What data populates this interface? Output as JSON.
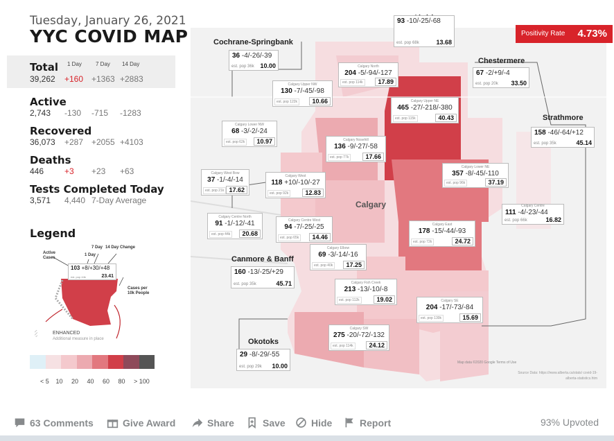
{
  "header": {
    "date": "Tuesday, January 26, 2021",
    "title": "YYC COVID MAP"
  },
  "positivity": {
    "label": "Positivity Rate",
    "value": "4.73%"
  },
  "stats": {
    "col_1day": "1 Day",
    "col_7day": "7 Day",
    "col_14day": "14 Day",
    "total": {
      "label": "Total",
      "value": "39,262",
      "d1": "+160",
      "d7": "+1363",
      "d14": "+2883"
    },
    "active": {
      "label": "Active",
      "value": "2,743",
      "d1": "-130",
      "d7": "-715",
      "d14": "-1283"
    },
    "recovered": {
      "label": "Recovered",
      "value": "36,073",
      "d1": "+287",
      "d7": "+2055",
      "d14": "+4103"
    },
    "deaths": {
      "label": "Deaths",
      "value": "446",
      "d1": "+3",
      "d7": "+23",
      "d14": "+63"
    },
    "tests": {
      "label": "Tests Completed Today",
      "value": "3,571",
      "avg": "4,440",
      "avg_label": "7-Day Average"
    }
  },
  "legend": {
    "title": "Legend",
    "active_cases": "Active Cases",
    "one_day": "1 Day",
    "seven_day": "7 Day",
    "fourteen_day": "14 Day Change",
    "sample_main": "103",
    "sample_changes": "+8/+30/+48",
    "sample_pop": "est. pop 44k",
    "sample_rate": "23.41",
    "cases_per": "Cases per 10k People",
    "enhanced": "ENHANCED",
    "enhanced_sub": "Additional measure in place",
    "scale_colors": [
      "#dff0f7",
      "#f6e1e3",
      "#f4c9cd",
      "#ecaab0",
      "#e2787f",
      "#d13f49",
      "#8e4a5a",
      "#555555"
    ],
    "scale_labels": [
      "< 5",
      "10",
      "20",
      "40",
      "60",
      "80",
      "> 100"
    ]
  },
  "regions": [
    {
      "name": "Calgary North",
      "active": "204",
      "changes": "-5/-94/-127",
      "pop": "est. pop 114k",
      "rate": "17.89"
    },
    {
      "name": "Calgary Upper NW",
      "active": "130",
      "changes": "-7/-45/-98",
      "pop": "est. pop 122k",
      "rate": "10.66"
    },
    {
      "name": "Calgary Upper NE",
      "active": "465",
      "changes": "-27/-218/-380",
      "pop": "est. pop 115k",
      "rate": "40.43"
    },
    {
      "name": "Calgary Lower NW",
      "active": "68",
      "changes": "-3/-2/-24",
      "pop": "est. pop 62k",
      "rate": "10.97"
    },
    {
      "name": "Calgary Nosehill",
      "active": "136",
      "changes": "-9/-27/-58",
      "pop": "est. pop 77k",
      "rate": "17.66"
    },
    {
      "name": "Calgary Lower NE",
      "active": "357",
      "changes": "-8/-45/-110",
      "pop": "est. pop 96k",
      "rate": "37.19"
    },
    {
      "name": "Calgary West Bow",
      "active": "37",
      "changes": "-1/-4/-14",
      "pop": "est. pop 21k",
      "rate": "17.62"
    },
    {
      "name": "Calgary West",
      "active": "118",
      "changes": "+10/-10/-27",
      "pop": "est. pop 92k",
      "rate": "12.83"
    },
    {
      "name": "Calgary Centre North",
      "active": "91",
      "changes": "-1/-12/-41",
      "pop": "est. pop 44k",
      "rate": "20.68"
    },
    {
      "name": "Calgary Centre West",
      "active": "94",
      "changes": "-7/-25/-25",
      "pop": "est. pop 65k",
      "rate": "14.46"
    },
    {
      "name": "Calgary East",
      "active": "178",
      "changes": "-15/-44/-93",
      "pop": "est. pop 72k",
      "rate": "24.72"
    },
    {
      "name": "Calgary Elbow",
      "active": "69",
      "changes": "-3/-14/-16",
      "pop": "est. pop 40k",
      "rate": "17.25"
    },
    {
      "name": "Calgary Fish Creek",
      "active": "213",
      "changes": "-13/-10/-8",
      "pop": "est. pop 112k",
      "rate": "19.02"
    },
    {
      "name": "Calgary SE",
      "active": "204",
      "changes": "-17/-73/-84",
      "pop": "est. pop 130k",
      "rate": "15.69"
    },
    {
      "name": "Calgary SW",
      "active": "275",
      "changes": "-20/-72/-132",
      "pop": "est. pop 114k",
      "rate": "24.12"
    }
  ],
  "outer": [
    {
      "name": "Airdrie",
      "active": "93",
      "changes": "-10/-25/-68",
      "pop": "est. pop 68k",
      "rate": "13.68"
    },
    {
      "name": "Cochrane-Springbank",
      "active": "36",
      "changes": "-4/-26/-39",
      "pop": "est. pop 36k",
      "rate": "10.00"
    },
    {
      "name": "Chestermere",
      "active": "67",
      "changes": "-2/+9/-4",
      "pop": "est. pop 20k",
      "rate": "33.50"
    },
    {
      "name": "Strathmore",
      "active": "158",
      "changes": "-46/-64/+12",
      "pop": "est. pop 35k",
      "rate": "45.14"
    },
    {
      "name": "Calgary Centre",
      "active": "111",
      "changes": "-4/-23/-44",
      "pop": "est. pop 66k",
      "rate": "16.82"
    },
    {
      "name": "Canmore & Banff",
      "active": "160",
      "changes": "-13/-25/+29",
      "pop": "est. pop 35k",
      "rate": "45.71"
    },
    {
      "name": "Okotoks",
      "active": "29",
      "changes": "-8/-29/-55",
      "pop": "est. pop 29k",
      "rate": "10.00"
    }
  ],
  "map_labels": {
    "city": "Calgary",
    "map_data": "Map data ©2020 Google   Terms of Use",
    "source": "Source Data: https://www.alberta.ca/stats/ covid-19-alberta-statistics.htm"
  },
  "actions": {
    "comments": "63 Comments",
    "award": "Give Award",
    "share": "Share",
    "save": "Save",
    "hide": "Hide",
    "report": "Report",
    "upvoted": "93% Upvoted"
  }
}
